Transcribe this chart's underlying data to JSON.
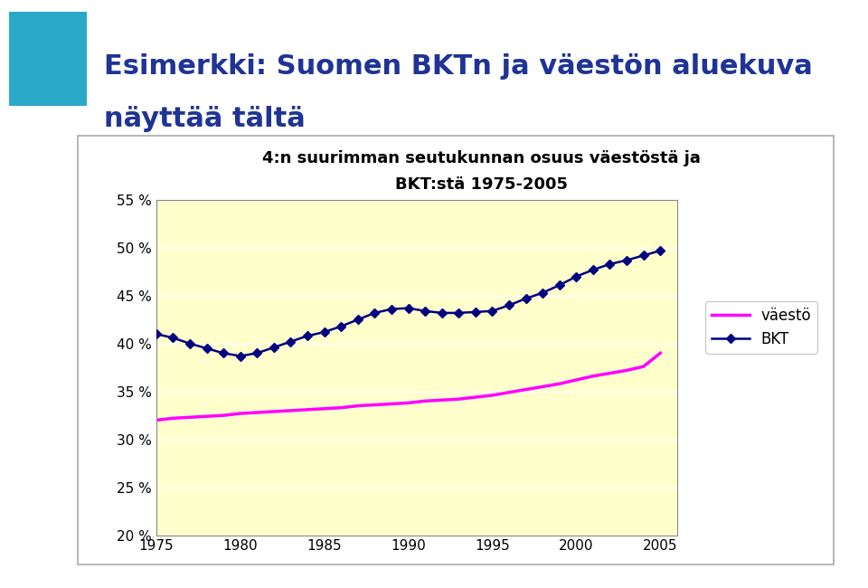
{
  "title_line1": "4:n suurimman seutukunnan osuus väestöstä ja",
  "title_line2": "BKT:stä 1975-2005",
  "slide_title_line1": "Esimerkki: Suomen BKTn ja väestön aluekuva",
  "slide_title_line2": "näyttää tältä",
  "years": [
    1975,
    1976,
    1977,
    1978,
    1979,
    1980,
    1981,
    1982,
    1983,
    1984,
    1985,
    1986,
    1987,
    1988,
    1989,
    1990,
    1991,
    1992,
    1993,
    1994,
    1995,
    1996,
    1997,
    1998,
    1999,
    2000,
    2001,
    2002,
    2003,
    2004,
    2005
  ],
  "bkt": [
    0.41,
    0.406,
    0.4,
    0.395,
    0.39,
    0.387,
    0.39,
    0.396,
    0.402,
    0.408,
    0.412,
    0.418,
    0.425,
    0.432,
    0.436,
    0.437,
    0.434,
    0.432,
    0.432,
    0.433,
    0.434,
    0.44,
    0.447,
    0.453,
    0.461,
    0.47,
    0.477,
    0.483,
    0.487,
    0.492,
    0.497
  ],
  "vaesto": [
    0.32,
    0.322,
    0.323,
    0.324,
    0.325,
    0.327,
    0.328,
    0.329,
    0.33,
    0.331,
    0.332,
    0.333,
    0.335,
    0.336,
    0.337,
    0.338,
    0.34,
    0.341,
    0.342,
    0.344,
    0.346,
    0.349,
    0.352,
    0.355,
    0.358,
    0.362,
    0.366,
    0.369,
    0.372,
    0.376,
    0.39
  ],
  "bkt_color": "#000080",
  "vaesto_color": "#FF00FF",
  "chart_bg_color": "#FFFFCC",
  "outer_bg_color": "#FFFFFF",
  "chart_border_color": "#AAAAAA",
  "ylim": [
    0.2,
    0.55
  ],
  "yticks": [
    0.2,
    0.25,
    0.3,
    0.35,
    0.4,
    0.45,
    0.5,
    0.55
  ],
  "xticks": [
    1975,
    1980,
    1985,
    1990,
    1995,
    2000,
    2005
  ],
  "slide_title_color": "#1F3494",
  "logo_bg_color": "#29A8C8",
  "legend_vaesto": "väestö",
  "legend_bkt": "BKT",
  "marker_style": "D",
  "marker_size": 5,
  "chart_title_fontsize": 13,
  "slide_title_fontsize": 22,
  "tick_fontsize": 11,
  "legend_fontsize": 12
}
